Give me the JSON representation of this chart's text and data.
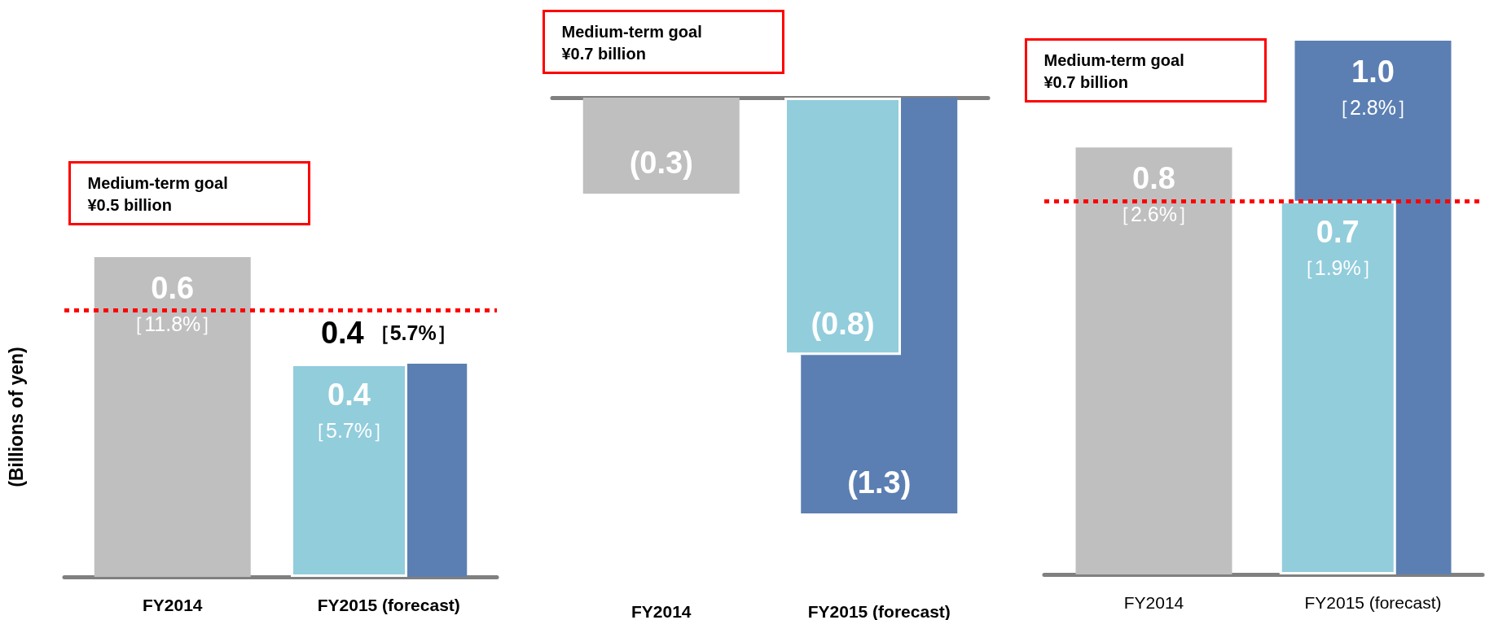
{
  "chart_data": [
    {
      "type": "bar",
      "ylabel": "(Billions of yen)",
      "categories": [
        "FY2014",
        "FY2015 (forecast)"
      ],
      "tick_labels": "x",
      "grid": false,
      "series": [
        {
          "colors": [
            "#bfbfbf",
            "#5b7fb3"
          ],
          "values": [
            0.6,
            0.4
          ],
          "value_labels": [
            "0.6\n［11.8%］",
            "0.4 ［5.7%］"
          ]
        },
        {
          "colors": [
            "#92cddc",
            "#92cddc"
          ],
          "values": [
            null,
            0.4
          ],
          "value_labels": [
            null,
            "0.4\n［5.7%］"
          ]
        }
      ],
      "ref_lines": [
        {
          "axis": "y",
          "value": 0.5,
          "color": "#ff0000",
          "line_style": "dotted"
        }
      ],
      "annotations": [
        "Medium-term goal\n¥0.5 billion"
      ]
    },
    {
      "type": "bar",
      "categories": [
        "FY2014",
        "FY2015 (forecast)"
      ],
      "tick_labels": "x",
      "grid": false,
      "series": [
        {
          "colors": [
            "#bfbfbf",
            "#5b7fb3"
          ],
          "values": [
            -0.3,
            -1.3
          ],
          "value_labels": [
            "(0.3)",
            "(1.3)"
          ]
        },
        {
          "colors": [
            "#92cddc",
            "#92cddc"
          ],
          "values": [
            null,
            -0.8
          ],
          "value_labels": [
            null,
            "(0.8)"
          ]
        }
      ],
      "annotations": [
        "Medium-term goal\n¥0.7 billion"
      ]
    },
    {
      "type": "bar",
      "categories": [
        "FY2014",
        "FY2015 (forecast)"
      ],
      "tick_labels": "x",
      "grid": false,
      "series": [
        {
          "colors": [
            "#bfbfbf",
            "#5b7fb3"
          ],
          "values": [
            0.8,
            1.0
          ],
          "value_labels": [
            "0.8\n［2.6%］",
            "1.0\n［2.8%］"
          ]
        },
        {
          "colors": [
            "#92cddc",
            "#92cddc"
          ],
          "values": [
            null,
            0.7
          ],
          "value_labels": [
            null,
            "0.7\n［1.9%］"
          ]
        }
      ],
      "ref_lines": [
        {
          "axis": "y",
          "value": 0.7,
          "color": "#ff0000",
          "line_style": "dotted"
        }
      ],
      "annotations": [
        "Medium-term goal\n¥0.7 billion"
      ]
    }
  ]
}
